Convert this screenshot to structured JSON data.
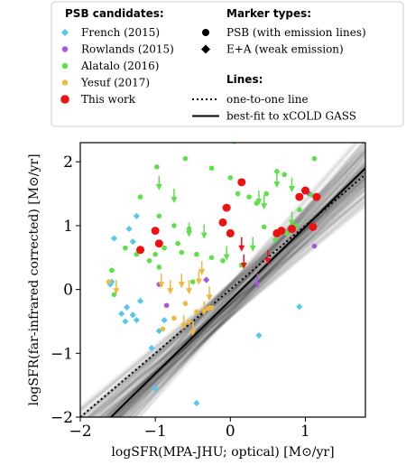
{
  "chart_data": {
    "type": "scatter",
    "xlabel": "logSFR(MPA-JHU; optical) [M⊙/yr]",
    "ylabel": "logSFR(far-infrared corrected) [M⊙/yr]",
    "xlim": [
      -2,
      1.8
    ],
    "ylim": [
      -2,
      2.3
    ],
    "x_ticks": [
      -2,
      -1,
      0,
      1
    ],
    "y_ticks": [
      -2,
      -1,
      0,
      1,
      2
    ],
    "x_tick_labels": [
      "−2",
      "−1",
      "0",
      "1"
    ],
    "y_tick_labels": [
      "−2",
      "−1",
      "0",
      "1",
      "2"
    ],
    "legend": {
      "candidates_title": "PSB candidates:",
      "markers_title": "Marker types:",
      "lines_title": "Lines:",
      "candidates": [
        {
          "name": "French (2015)",
          "marker": "diamond",
          "color": "#56c8ee"
        },
        {
          "name": "Rowlands (2015)",
          "marker": "circle",
          "color": "#aa55dd"
        },
        {
          "name": "Alatalo (2016)",
          "marker": "circle",
          "color": "#5ee04a"
        },
        {
          "name": "Yesuf (2017)",
          "marker": "circle",
          "color": "#f0b840"
        },
        {
          "name": "This work",
          "marker": "circle",
          "color": "#ee1111"
        }
      ],
      "marker_types": [
        {
          "name": "PSB (with emission lines)",
          "marker": "circle"
        },
        {
          "name": "E+A (weak emission)",
          "marker": "diamond"
        }
      ],
      "lines": [
        {
          "name": "one-to-one line",
          "style": "dotted"
        },
        {
          "name": "best-fit to xCOLD GASS",
          "style": "solid"
        }
      ]
    },
    "lines": {
      "one_to_one": {
        "slope": 1.0,
        "intercept": 0.0
      },
      "best_fit": {
        "slope": 1.15,
        "intercept": -0.17
      }
    },
    "series": [
      {
        "name": "French (2015)",
        "marker": "diamond",
        "color": "#56c8ee",
        "points": [
          [
            -1.55,
            0.8
          ],
          [
            -1.3,
            0.75
          ],
          [
            -1.35,
            0.95
          ],
          [
            -1.25,
            1.15
          ],
          [
            -1.6,
            0.08
          ],
          [
            -1.58,
            0.12
          ],
          [
            -1.45,
            -0.38
          ],
          [
            -1.4,
            -0.5
          ],
          [
            -1.3,
            -0.4
          ],
          [
            -1.38,
            -0.28
          ],
          [
            -1.25,
            -0.48
          ],
          [
            -1.2,
            -0.18
          ],
          [
            -1.05,
            -0.92
          ],
          [
            -0.95,
            -0.65
          ],
          [
            -0.88,
            -0.48
          ],
          [
            -1.0,
            -1.55
          ],
          [
            -0.45,
            -1.78
          ],
          [
            0.38,
            -0.72
          ],
          [
            0.92,
            -0.27
          ]
        ]
      },
      {
        "name": "Rowlands (2015)",
        "marker": "circle",
        "color": "#aa55dd",
        "points": [
          [
            -0.95,
            0.08
          ],
          [
            -0.85,
            -0.25
          ],
          [
            1.05,
            1.5
          ],
          [
            1.12,
            0.68
          ]
        ]
      },
      {
        "name": "Rowlands (2015)",
        "marker": "diamond",
        "color": "#aa55dd",
        "points": [
          [
            -0.32,
            0.15
          ]
        ]
      },
      {
        "name": "Rowlands (2015)",
        "marker": "arrow",
        "color": "#aa55dd",
        "points": [
          [
            0.36,
            0.05
          ]
        ]
      },
      {
        "name": "Alatalo (2016)",
        "marker": "circle",
        "color": "#5ee04a",
        "points": [
          [
            -1.2,
            1.45
          ],
          [
            -0.98,
            1.92
          ],
          [
            -0.6,
            2.05
          ],
          [
            -0.95,
            1.15
          ],
          [
            -0.75,
            1.0
          ],
          [
            -0.55,
            0.95
          ],
          [
            -0.88,
            0.65
          ],
          [
            -0.7,
            0.72
          ],
          [
            -0.65,
            0.58
          ],
          [
            -0.45,
            0.55
          ],
          [
            -1.08,
            0.45
          ],
          [
            -1.25,
            0.55
          ],
          [
            -1.4,
            0.65
          ],
          [
            -1.58,
            0.3
          ],
          [
            -1.55,
            -0.08
          ],
          [
            -1.0,
            0.55
          ],
          [
            -0.95,
            0.35
          ],
          [
            -0.25,
            1.9
          ],
          [
            0.0,
            1.75
          ],
          [
            0.05,
            2.32
          ],
          [
            0.1,
            1.5
          ],
          [
            0.25,
            1.45
          ],
          [
            0.35,
            1.35
          ],
          [
            0.62,
            1.85
          ],
          [
            0.72,
            1.8
          ],
          [
            0.48,
            1.5
          ],
          [
            0.92,
            1.25
          ],
          [
            1.08,
            1.48
          ],
          [
            1.12,
            2.05
          ],
          [
            0.88,
            1.0
          ],
          [
            0.75,
            0.88
          ],
          [
            0.6,
            0.78
          ],
          [
            0.45,
            0.98
          ],
          [
            -0.25,
            0.5
          ],
          [
            -0.5,
            0.12
          ],
          [
            -0.1,
            0.45
          ],
          [
            0.15,
            0.38
          ]
        ]
      },
      {
        "name": "Alatalo (2016)",
        "marker": "arrow",
        "color": "#5ee04a",
        "points": [
          [
            -0.95,
            1.58
          ],
          [
            -0.75,
            1.38
          ],
          [
            -0.55,
            0.85
          ],
          [
            -0.35,
            0.82
          ],
          [
            0.38,
            1.35
          ],
          [
            0.45,
            1.28
          ],
          [
            0.62,
            1.62
          ],
          [
            0.82,
            1.02
          ],
          [
            -0.05,
            0.48
          ],
          [
            0.3,
            0.62
          ],
          [
            0.82,
            1.55
          ]
        ]
      },
      {
        "name": "Yesuf (2017)",
        "marker": "circle",
        "color": "#f0b840",
        "points": [
          [
            -1.62,
            0.12
          ],
          [
            -0.9,
            -0.62
          ],
          [
            -0.75,
            -0.45
          ],
          [
            -0.55,
            -0.5
          ],
          [
            -0.3,
            -0.3
          ],
          [
            -0.25,
            -0.28
          ],
          [
            -0.6,
            -0.22
          ],
          [
            -0.45,
            -0.35
          ]
        ]
      },
      {
        "name": "Yesuf (2017)",
        "marker": "arrow",
        "color": "#f0b840",
        "points": [
          [
            -1.52,
            -0.05
          ],
          [
            -0.92,
            0.05
          ],
          [
            -0.8,
            -0.05
          ],
          [
            -0.65,
            0.05
          ],
          [
            -0.55,
            -0.05
          ],
          [
            -0.42,
            0.1
          ],
          [
            -0.28,
            -0.15
          ],
          [
            -0.35,
            -0.38
          ],
          [
            -0.62,
            -0.6
          ],
          [
            -0.5,
            -0.7
          ],
          [
            -0.38,
            0.25
          ]
        ]
      },
      {
        "name": "This work",
        "marker": "circle",
        "color": "#ee1111",
        "points": [
          [
            -1.2,
            0.62
          ],
          [
            -1.0,
            0.92
          ],
          [
            -0.95,
            0.72
          ],
          [
            -0.1,
            1.05
          ],
          [
            0.0,
            0.88
          ],
          [
            -0.05,
            1.28
          ],
          [
            0.15,
            1.68
          ],
          [
            0.92,
            1.45
          ],
          [
            1.0,
            1.55
          ],
          [
            1.15,
            1.45
          ],
          [
            0.62,
            0.88
          ],
          [
            0.82,
            0.95
          ],
          [
            0.68,
            0.92
          ],
          [
            1.1,
            0.98
          ]
        ]
      },
      {
        "name": "This work",
        "marker": "arrow",
        "color": "#ee1111",
        "points": [
          [
            0.15,
            0.62
          ],
          [
            0.18,
            0.35
          ],
          [
            0.5,
            0.42
          ]
        ]
      }
    ]
  }
}
